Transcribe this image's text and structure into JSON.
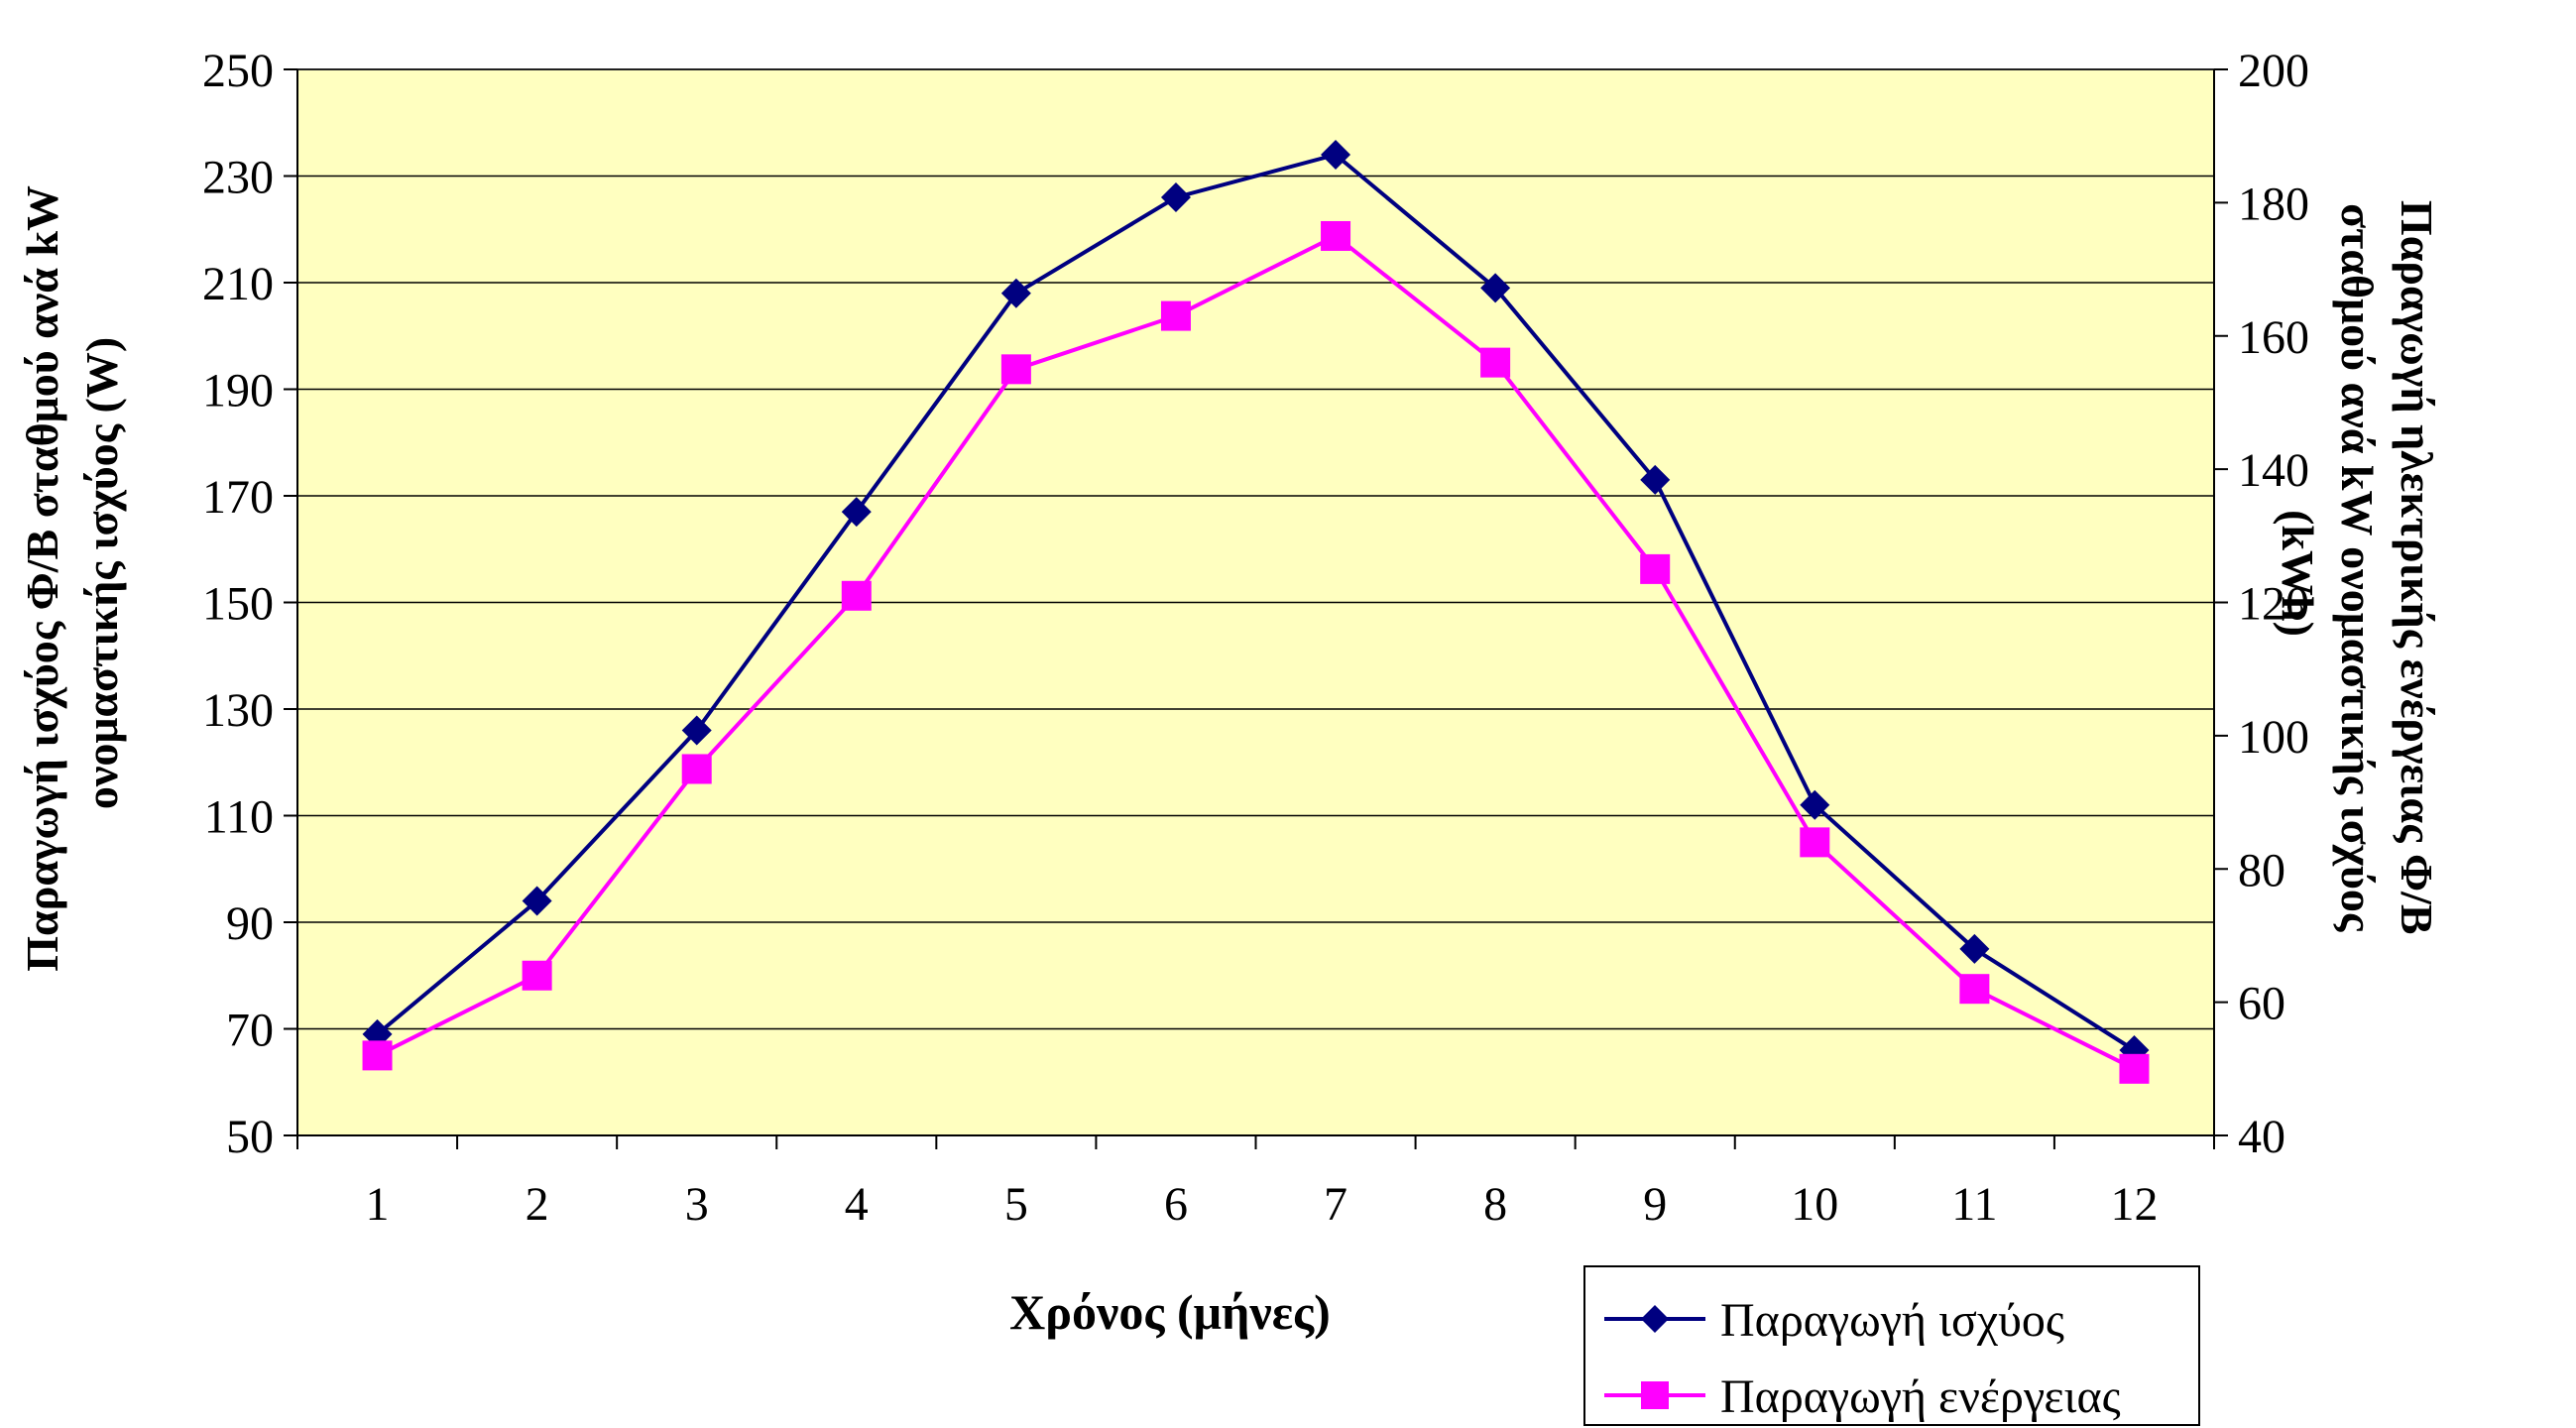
{
  "chart_data": {
    "type": "line",
    "x": [
      1,
      2,
      3,
      4,
      5,
      6,
      7,
      8,
      9,
      10,
      11,
      12
    ],
    "xlabel": "Χρόνος (μήνες)",
    "ylabel_left": "Παραγωγή ισχύος Φ/Β σταθμού ανά kW ονομαστικής ισχύος (W)",
    "ylabel_right": "Παραγωγή ηλεκτρικής ενέργειας Φ/Β σταθμού ανά kW ονομαστικής ισχύος (kWh)",
    "ylim_left": [
      50,
      250
    ],
    "ylim_right": [
      40,
      200
    ],
    "yticks_left": [
      50,
      70,
      90,
      110,
      130,
      150,
      170,
      190,
      210,
      230,
      250
    ],
    "yticks_right": [
      40,
      60,
      80,
      100,
      120,
      140,
      160,
      180,
      200
    ],
    "grid": true,
    "legend_position": "bottom-right",
    "series": [
      {
        "name": "Παραγωγή ισχύος",
        "axis": "left",
        "marker": "diamond",
        "color": "#000080",
        "values": [
          69,
          94,
          126,
          167,
          208,
          226,
          234,
          209,
          173,
          112,
          85,
          66
        ]
      },
      {
        "name": "Παραγωγή ενέργειας",
        "axis": "right",
        "marker": "square",
        "color": "#FF00FF",
        "values": [
          52,
          64,
          95,
          121,
          155,
          163,
          175,
          156,
          125,
          84,
          62,
          50
        ]
      }
    ]
  },
  "colors": {
    "plot_background": "#FFFFC0",
    "gridline": "#000000"
  }
}
